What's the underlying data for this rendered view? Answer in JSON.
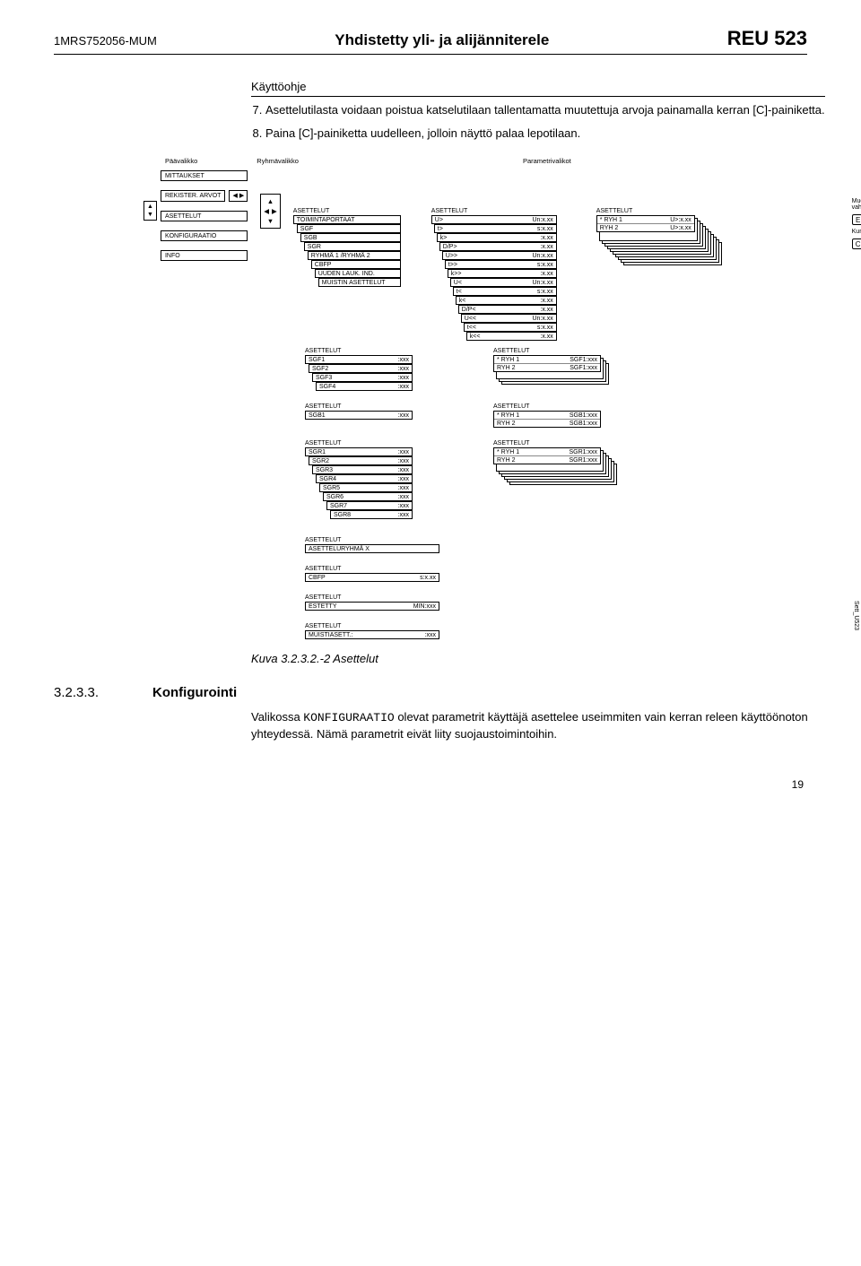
{
  "header": {
    "doc_id": "1MRS752056-MUM",
    "title": "Yhdistetty yli- ja alijänniterele",
    "model": "REU 523"
  },
  "subtitle": "Käyttöohje",
  "instructions": [
    "Asettelutilasta voidaan poistua katselutilaan tallentamatta muutettuja arvoja painamalla kerran [C]-painiketta.",
    "Paina [C]-painiketta uudelleen, jolloin näyttö palaa lepotilaan."
  ],
  "diagram": {
    "col_labels": [
      "Päävalikko",
      "Ryhmävalikko",
      "Parametrivalikot"
    ],
    "main_menu": [
      "MITTAUKSET",
      "REKISTER. ARVOT",
      "ASETTELUT",
      "KONFIGURAATIO",
      "INFO"
    ],
    "group_menu": {
      "title": "ASETTELUT",
      "items": [
        "TOIMINTAPORTAAT",
        "SGF",
        "SGB",
        "SGR",
        "RYHMÄ 1 /RYHMÄ 2",
        "CBFP",
        "UUDEN LAUK. IND.",
        "MUISTIN ASETTELUT"
      ]
    },
    "param_main": {
      "title": "ASETTELUT",
      "rows": [
        [
          "U>",
          "Un:x.xx"
        ],
        [
          "t>",
          "s:x.xx"
        ],
        [
          "k>",
          ":x.xx"
        ],
        [
          "D/P>",
          ":x.xx"
        ],
        [
          "U>>",
          "Un:x.xx"
        ],
        [
          "t>>",
          "s:x.xx"
        ],
        [
          "k>>",
          ":x.xx"
        ],
        [
          "U<",
          "Un:x.xx"
        ],
        [
          "t<",
          "s:x.xx"
        ],
        [
          "k<",
          ":x.xx"
        ],
        [
          "D/P<",
          ":x.xx"
        ],
        [
          "U<<",
          "Un:x.xx"
        ],
        [
          "t<<",
          "s:x.xx"
        ],
        [
          "k<<",
          ":x.xx"
        ]
      ]
    },
    "ryh_main": {
      "title": "ASETTELUT",
      "rows": [
        [
          "* RYH 1",
          "U>:x.xx"
        ],
        [
          "RYH 2",
          "U>:x.xx"
        ]
      ]
    },
    "legend": {
      "edit_confirm": "Muokkaa/\nvahvista",
      "e_key": "E",
      "cancel": "Kumoa",
      "c_key": "C"
    },
    "sgf": {
      "title": "ASETTELUT",
      "rows": [
        [
          "SGF1",
          ":xxx"
        ],
        [
          "SGF2",
          ":xxx"
        ],
        [
          "SGF3",
          ":xxx"
        ],
        [
          "SGF4",
          ":xxx"
        ]
      ],
      "ryh": {
        "title": "ASETTELUT",
        "rows": [
          [
            "* RYH 1",
            "SGF1:xxx"
          ],
          [
            "RYH 2",
            "SGF1:xxx"
          ]
        ]
      }
    },
    "sgb": {
      "title": "ASETTELUT",
      "rows": [
        [
          "SGB1",
          ":xxx"
        ]
      ],
      "ryh": {
        "title": "ASETTELUT",
        "rows": [
          [
            "* RYH 1",
            "SGB1:xxx"
          ],
          [
            "RYH 2",
            "SGB1:xxx"
          ]
        ]
      }
    },
    "sgr": {
      "title": "ASETTELUT",
      "rows": [
        [
          "SGR1",
          ":xxx"
        ],
        [
          "SGR2",
          ":xxx"
        ],
        [
          "SGR3",
          ":xxx"
        ],
        [
          "SGR4",
          ":xxx"
        ],
        [
          "SGR5",
          ":xxx"
        ],
        [
          "SGR6",
          ":xxx"
        ],
        [
          "SGR7",
          ":xxx"
        ],
        [
          "SGR8",
          ":xxx"
        ]
      ],
      "ryh": {
        "title": "ASETTELUT",
        "rows": [
          [
            "* RYH 1",
            "SGR1:xxx"
          ],
          [
            "RYH 2",
            "SGR1:xxx"
          ]
        ]
      }
    },
    "ryhma_x": {
      "title": "ASETTELUT",
      "row": "ASETTELURYHMÄ X"
    },
    "cbfp": {
      "title": "ASETTELUT",
      "rows": [
        [
          "CBFP",
          "s:x.xx"
        ]
      ]
    },
    "estetty": {
      "title": "ASETTELUT",
      "rows": [
        [
          "ESTETTY",
          "MIN:xxx"
        ]
      ]
    },
    "muisti": {
      "title": "ASETTELUT",
      "rows": [
        [
          "MUISTIASETT.:",
          ":xxx"
        ]
      ]
    },
    "side_label": "Sett_U523"
  },
  "figure_caption": "Kuva 3.2.3.2.-2   Asettelut",
  "section": {
    "num": "3.2.3.3.",
    "title": "Konfigurointi",
    "body_pre": "Valikossa ",
    "body_mono": "KONFIGURAATIO",
    "body_post": " olevat parametrit käyttäjä asettelee useimmiten vain kerran releen käyttöönoton yhteydessä. Nämä parametrit eivät liity suojaustoimintoihin."
  },
  "page_number": "19"
}
